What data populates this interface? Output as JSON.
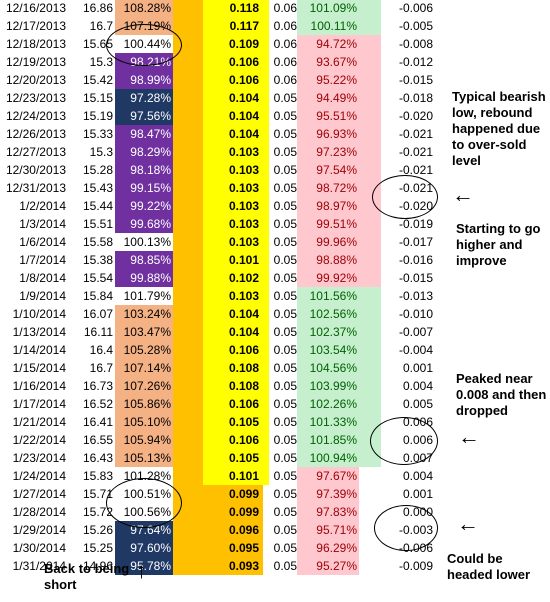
{
  "rows": [
    {
      "date": "12/16/2013",
      "price": "16.86",
      "pct": "108.28%",
      "pct_color": "#f4b183",
      "pct_text": "#000000",
      "val": "0.118",
      "val_bg": "#ffff00",
      "gap1": "#ffc000",
      "gap2": "#ffff00",
      "six": "0.06",
      "ratio": "101.09%",
      "ratio_bg": "#c6efce",
      "ratio_text": "#006100",
      "gap3": "#c6efce",
      "osc": "-0.006"
    },
    {
      "date": "12/17/2013",
      "price": "16.7",
      "pct": "107.19%",
      "pct_color": "#f4b183",
      "pct_text": "#000000",
      "val": "0.117",
      "val_bg": "#ffff00",
      "gap1": "#ffc000",
      "gap2": "#ffff00",
      "six": "0.06",
      "ratio": "100.11%",
      "ratio_bg": "#c6efce",
      "ratio_text": "#006100",
      "gap3": "#c6efce",
      "osc": "-0.005"
    },
    {
      "date": "12/18/2013",
      "price": "15.65",
      "pct": "100.44%",
      "pct_color": "#ffffff",
      "pct_text": "#000000",
      "val": "0.109",
      "val_bg": "#ffff00",
      "gap1": "#ffc000",
      "gap2": "#ffff00",
      "six": "0.06",
      "ratio": "94.72%",
      "ratio_bg": "#ffc7ce",
      "ratio_text": "#9c0006",
      "gap3": "#ffc7ce",
      "osc": "-0.008"
    },
    {
      "date": "12/19/2013",
      "price": "15.3",
      "pct": "98.21%",
      "pct_color": "#7030a0",
      "pct_text": "#ffffff",
      "val": "0.106",
      "val_bg": "#ffff00",
      "gap1": "#ffc000",
      "gap2": "#ffff00",
      "six": "0.06",
      "ratio": "93.67%",
      "ratio_bg": "#ffc7ce",
      "ratio_text": "#9c0006",
      "gap3": "#ffc7ce",
      "osc": "-0.012"
    },
    {
      "date": "12/20/2013",
      "price": "15.42",
      "pct": "98.99%",
      "pct_color": "#7030a0",
      "pct_text": "#ffffff",
      "val": "0.106",
      "val_bg": "#ffff00",
      "gap1": "#ffc000",
      "gap2": "#ffff00",
      "six": "0.06",
      "ratio": "95.22%",
      "ratio_bg": "#ffc7ce",
      "ratio_text": "#9c0006",
      "gap3": "#ffc7ce",
      "osc": "-0.015"
    },
    {
      "date": "12/23/2013",
      "price": "15.15",
      "pct": "97.28%",
      "pct_color": "#1f3864",
      "pct_text": "#ffffff",
      "val": "0.104",
      "val_bg": "#ffff00",
      "gap1": "#ffc000",
      "gap2": "#ffff00",
      "six": "0.05",
      "ratio": "94.49%",
      "ratio_bg": "#ffc7ce",
      "ratio_text": "#9c0006",
      "gap3": "#ffc7ce",
      "osc": "-0.018"
    },
    {
      "date": "12/24/2013",
      "price": "15.19",
      "pct": "97.56%",
      "pct_color": "#1f3864",
      "pct_text": "#ffffff",
      "val": "0.104",
      "val_bg": "#ffff00",
      "gap1": "#ffc000",
      "gap2": "#ffff00",
      "six": "0.05",
      "ratio": "95.51%",
      "ratio_bg": "#ffc7ce",
      "ratio_text": "#9c0006",
      "gap3": "#ffc7ce",
      "osc": "-0.020"
    },
    {
      "date": "12/26/2013",
      "price": "15.33",
      "pct": "98.47%",
      "pct_color": "#7030a0",
      "pct_text": "#ffffff",
      "val": "0.104",
      "val_bg": "#ffff00",
      "gap1": "#ffc000",
      "gap2": "#ffff00",
      "six": "0.05",
      "ratio": "96.93%",
      "ratio_bg": "#ffc7ce",
      "ratio_text": "#9c0006",
      "gap3": "#ffc7ce",
      "osc": "-0.021"
    },
    {
      "date": "12/27/2013",
      "price": "15.3",
      "pct": "98.29%",
      "pct_color": "#7030a0",
      "pct_text": "#ffffff",
      "val": "0.103",
      "val_bg": "#ffff00",
      "gap1": "#ffc000",
      "gap2": "#ffff00",
      "six": "0.05",
      "ratio": "97.23%",
      "ratio_bg": "#ffc7ce",
      "ratio_text": "#9c0006",
      "gap3": "#ffc7ce",
      "osc": "-0.021"
    },
    {
      "date": "12/30/2013",
      "price": "15.28",
      "pct": "98.18%",
      "pct_color": "#7030a0",
      "pct_text": "#ffffff",
      "val": "0.103",
      "val_bg": "#ffff00",
      "gap1": "#ffc000",
      "gap2": "#ffff00",
      "six": "0.05",
      "ratio": "97.54%",
      "ratio_bg": "#ffc7ce",
      "ratio_text": "#9c0006",
      "gap3": "#ffc7ce",
      "osc": "-0.021"
    },
    {
      "date": "12/31/2013",
      "price": "15.43",
      "pct": "99.15%",
      "pct_color": "#7030a0",
      "pct_text": "#ffffff",
      "val": "0.103",
      "val_bg": "#ffff00",
      "gap1": "#ffc000",
      "gap2": "#ffff00",
      "six": "0.05",
      "ratio": "98.72%",
      "ratio_bg": "#ffc7ce",
      "ratio_text": "#9c0006",
      "gap3": "#ffc7ce",
      "osc": "-0.021"
    },
    {
      "date": "1/2/2014",
      "price": "15.44",
      "pct": "99.22%",
      "pct_color": "#7030a0",
      "pct_text": "#ffffff",
      "val": "0.103",
      "val_bg": "#ffff00",
      "gap1": "#ffc000",
      "gap2": "#ffff00",
      "six": "0.05",
      "ratio": "98.97%",
      "ratio_bg": "#ffc7ce",
      "ratio_text": "#9c0006",
      "gap3": "#ffc7ce",
      "osc": "-0.020"
    },
    {
      "date": "1/3/2014",
      "price": "15.51",
      "pct": "99.68%",
      "pct_color": "#7030a0",
      "pct_text": "#ffffff",
      "val": "0.103",
      "val_bg": "#ffff00",
      "gap1": "#ffc000",
      "gap2": "#ffff00",
      "six": "0.05",
      "ratio": "99.51%",
      "ratio_bg": "#ffc7ce",
      "ratio_text": "#9c0006",
      "gap3": "#ffc7ce",
      "osc": "-0.019"
    },
    {
      "date": "1/6/2014",
      "price": "15.58",
      "pct": "100.13%",
      "pct_color": "#ffffff",
      "pct_text": "#000000",
      "val": "0.103",
      "val_bg": "#ffff00",
      "gap1": "#ffc000",
      "gap2": "#ffff00",
      "six": "0.05",
      "ratio": "99.96%",
      "ratio_bg": "#ffc7ce",
      "ratio_text": "#9c0006",
      "gap3": "#ffc7ce",
      "osc": "-0.017"
    },
    {
      "date": "1/7/2014",
      "price": "15.38",
      "pct": "98.85%",
      "pct_color": "#7030a0",
      "pct_text": "#ffffff",
      "val": "0.101",
      "val_bg": "#ffff00",
      "gap1": "#ffc000",
      "gap2": "#ffff00",
      "six": "0.05",
      "ratio": "98.88%",
      "ratio_bg": "#ffc7ce",
      "ratio_text": "#9c0006",
      "gap3": "#ffc7ce",
      "osc": "-0.016"
    },
    {
      "date": "1/8/2014",
      "price": "15.54",
      "pct": "99.88%",
      "pct_color": "#7030a0",
      "pct_text": "#ffffff",
      "val": "0.102",
      "val_bg": "#ffff00",
      "gap1": "#ffc000",
      "gap2": "#ffff00",
      "six": "0.05",
      "ratio": "99.92%",
      "ratio_bg": "#ffc7ce",
      "ratio_text": "#9c0006",
      "gap3": "#ffc7ce",
      "osc": "-0.015"
    },
    {
      "date": "1/9/2014",
      "price": "15.84",
      "pct": "101.79%",
      "pct_color": "#ffffff",
      "pct_text": "#000000",
      "val": "0.103",
      "val_bg": "#ffff00",
      "gap1": "#ffc000",
      "gap2": "#ffff00",
      "six": "0.05",
      "ratio": "101.56%",
      "ratio_bg": "#c6efce",
      "ratio_text": "#006100",
      "gap3": "#c6efce",
      "osc": "-0.013"
    },
    {
      "date": "1/10/2014",
      "price": "16.07",
      "pct": "103.24%",
      "pct_color": "#f4b183",
      "pct_text": "#000000",
      "val": "0.104",
      "val_bg": "#ffff00",
      "gap1": "#ffc000",
      "gap2": "#ffff00",
      "six": "0.05",
      "ratio": "102.56%",
      "ratio_bg": "#c6efce",
      "ratio_text": "#006100",
      "gap3": "#c6efce",
      "osc": "-0.010"
    },
    {
      "date": "1/13/2014",
      "price": "16.11",
      "pct": "103.47%",
      "pct_color": "#f4b183",
      "pct_text": "#000000",
      "val": "0.104",
      "val_bg": "#ffff00",
      "gap1": "#ffc000",
      "gap2": "#ffff00",
      "six": "0.05",
      "ratio": "102.37%",
      "ratio_bg": "#c6efce",
      "ratio_text": "#006100",
      "gap3": "#c6efce",
      "osc": "-0.007"
    },
    {
      "date": "1/14/2014",
      "price": "16.4",
      "pct": "105.28%",
      "pct_color": "#f4b183",
      "pct_text": "#000000",
      "val": "0.106",
      "val_bg": "#ffff00",
      "gap1": "#ffc000",
      "gap2": "#ffff00",
      "six": "0.05",
      "ratio": "103.54%",
      "ratio_bg": "#c6efce",
      "ratio_text": "#006100",
      "gap3": "#c6efce",
      "osc": "-0.004"
    },
    {
      "date": "1/15/2014",
      "price": "16.7",
      "pct": "107.14%",
      "pct_color": "#f4b183",
      "pct_text": "#000000",
      "val": "0.108",
      "val_bg": "#ffff00",
      "gap1": "#ffc000",
      "gap2": "#ffff00",
      "six": "0.05",
      "ratio": "104.56%",
      "ratio_bg": "#c6efce",
      "ratio_text": "#006100",
      "gap3": "#c6efce",
      "osc": "0.001"
    },
    {
      "date": "1/16/2014",
      "price": "16.73",
      "pct": "107.26%",
      "pct_color": "#f4b183",
      "pct_text": "#000000",
      "val": "0.108",
      "val_bg": "#ffff00",
      "gap1": "#ffc000",
      "gap2": "#ffff00",
      "six": "0.05",
      "ratio": "103.99%",
      "ratio_bg": "#c6efce",
      "ratio_text": "#006100",
      "gap3": "#c6efce",
      "osc": "0.004"
    },
    {
      "date": "1/17/2014",
      "price": "16.52",
      "pct": "105.86%",
      "pct_color": "#f4b183",
      "pct_text": "#000000",
      "val": "0.106",
      "val_bg": "#ffff00",
      "gap1": "#ffc000",
      "gap2": "#ffff00",
      "six": "0.05",
      "ratio": "102.26%",
      "ratio_bg": "#c6efce",
      "ratio_text": "#006100",
      "gap3": "#c6efce",
      "osc": "0.005"
    },
    {
      "date": "1/21/2014",
      "price": "16.41",
      "pct": "105.10%",
      "pct_color": "#f4b183",
      "pct_text": "#000000",
      "val": "0.105",
      "val_bg": "#ffff00",
      "gap1": "#ffc000",
      "gap2": "#ffff00",
      "six": "0.05",
      "ratio": "101.33%",
      "ratio_bg": "#c6efce",
      "ratio_text": "#006100",
      "gap3": "#c6efce",
      "osc": "0.006"
    },
    {
      "date": "1/22/2014",
      "price": "16.55",
      "pct": "105.94%",
      "pct_color": "#f4b183",
      "pct_text": "#000000",
      "val": "0.106",
      "val_bg": "#ffff00",
      "gap1": "#ffc000",
      "gap2": "#ffff00",
      "six": "0.05",
      "ratio": "101.85%",
      "ratio_bg": "#c6efce",
      "ratio_text": "#006100",
      "gap3": "#c6efce",
      "osc": "0.006"
    },
    {
      "date": "1/23/2014",
      "price": "16.43",
      "pct": "105.13%",
      "pct_color": "#f4b183",
      "pct_text": "#000000",
      "val": "0.105",
      "val_bg": "#ffff00",
      "gap1": "#ffc000",
      "gap2": "#ffff00",
      "six": "0.05",
      "ratio": "100.94%",
      "ratio_bg": "#c6efce",
      "ratio_text": "#006100",
      "gap3": "#c6efce",
      "osc": "0.007"
    },
    {
      "date": "1/24/2014",
      "price": "15.83",
      "pct": "101.28%",
      "pct_color": "#ffffff",
      "pct_text": "#000000",
      "val": "0.101",
      "val_bg": "#ffff00",
      "gap1": "#ffc000",
      "gap2": "#ffff00",
      "six": "0.05",
      "ratio": "97.67%",
      "ratio_bg": "#ffc7ce",
      "ratio_text": "#9c0006",
      "gap3": "#ffffff",
      "osc": "0.004"
    },
    {
      "date": "1/27/2014",
      "price": "15.71",
      "pct": "100.51%",
      "pct_color": "#ffffff",
      "pct_text": "#000000",
      "val": "0.099",
      "val_bg": "#ffc000",
      "gap1": "#ffc000",
      "gap2": "#ffffff",
      "six": "0.05",
      "ratio": "97.39%",
      "ratio_bg": "#ffc7ce",
      "ratio_text": "#9c0006",
      "gap3": "#ffffff",
      "osc": "0.001"
    },
    {
      "date": "1/28/2014",
      "price": "15.72",
      "pct": "100.56%",
      "pct_color": "#ffffff",
      "pct_text": "#000000",
      "val": "0.099",
      "val_bg": "#ffc000",
      "gap1": "#ffc000",
      "gap2": "#ffffff",
      "six": "0.05",
      "ratio": "97.83%",
      "ratio_bg": "#ffc7ce",
      "ratio_text": "#9c0006",
      "gap3": "#ffffff",
      "osc": "0.000"
    },
    {
      "date": "1/29/2014",
      "price": "15.26",
      "pct": "97.64%",
      "pct_color": "#1f3864",
      "pct_text": "#ffffff",
      "val": "0.096",
      "val_bg": "#ffc000",
      "gap1": "#ffc000",
      "gap2": "#ffffff",
      "six": "0.05",
      "ratio": "95.71%",
      "ratio_bg": "#ffc7ce",
      "ratio_text": "#9c0006",
      "gap3": "#ffffff",
      "osc": "-0.003"
    },
    {
      "date": "1/30/2014",
      "price": "15.25",
      "pct": "97.60%",
      "pct_color": "#1f3864",
      "pct_text": "#ffffff",
      "val": "0.095",
      "val_bg": "#ffc000",
      "gap1": "#ffc000",
      "gap2": "#ffffff",
      "six": "0.05",
      "ratio": "96.29%",
      "ratio_bg": "#ffc7ce",
      "ratio_text": "#9c0006",
      "gap3": "#ffffff",
      "osc": "-0.006"
    },
    {
      "date": "1/31/2014",
      "price": "14.96",
      "pct": "95.78%",
      "pct_color": "#1f3864",
      "pct_text": "#ffffff",
      "val": "0.093",
      "val_bg": "#ffc000",
      "gap1": "#ffc000",
      "gap2": "#ffffff",
      "six": "0.05",
      "ratio": "95.27%",
      "ratio_bg": "#ffc7ce",
      "ratio_text": "#9c0006",
      "gap3": "#ffffff",
      "osc": "-0.009"
    }
  ],
  "notes": {
    "bearish": "Typical bearish low, rebound happened due to over-sold level",
    "starting": "Starting to go higher and improve",
    "peaked": "Peaked near 0.008 and then dropped",
    "lower": "Could be headed lower",
    "short": "Back to being short"
  },
  "arrows": {
    "left": "←",
    "up": "↑"
  }
}
